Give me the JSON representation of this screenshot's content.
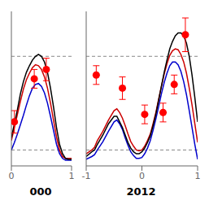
{
  "chart_data": [
    {
      "type": "line",
      "xlabel": "000",
      "xlim": [
        0,
        1
      ],
      "xticks": [
        0,
        1
      ],
      "ylim": [
        -0.35,
        1.3
      ],
      "tick_labels": "x",
      "reference_lines": [
        0.82,
        -0.18
      ],
      "series": [
        {
          "color": "#0000cc",
          "x": [
            0.0,
            0.05,
            0.1,
            0.15,
            0.2,
            0.25,
            0.3,
            0.35,
            0.4,
            0.45,
            0.5,
            0.55,
            0.6,
            0.65,
            0.7,
            0.75,
            0.8,
            0.85,
            0.9,
            0.95,
            1.0
          ],
          "values": [
            -0.18,
            -0.1,
            -0.01,
            0.09,
            0.19,
            0.3,
            0.4,
            0.48,
            0.52,
            0.53,
            0.5,
            0.43,
            0.32,
            0.18,
            0.03,
            -0.12,
            -0.22,
            -0.27,
            -0.29,
            -0.29,
            -0.29
          ]
        },
        {
          "color": "#cc0000",
          "x": [
            0.0,
            0.05,
            0.1,
            0.15,
            0.2,
            0.25,
            0.3,
            0.35,
            0.4,
            0.45,
            0.5,
            0.55,
            0.6,
            0.65,
            0.7,
            0.75,
            0.8,
            0.85,
            0.9,
            0.95,
            1.0
          ],
          "values": [
            -0.08,
            0.06,
            0.2,
            0.34,
            0.47,
            0.57,
            0.64,
            0.7,
            0.73,
            0.72,
            0.68,
            0.6,
            0.48,
            0.32,
            0.14,
            -0.04,
            -0.18,
            -0.25,
            -0.27,
            -0.27,
            -0.27
          ]
        },
        {
          "color": "#000000",
          "x": [
            0.0,
            0.05,
            0.1,
            0.15,
            0.2,
            0.25,
            0.3,
            0.35,
            0.4,
            0.45,
            0.5,
            0.55,
            0.6,
            0.65,
            0.7,
            0.75,
            0.8,
            0.85,
            0.9,
            0.95,
            1.0
          ],
          "values": [
            -0.05,
            0.1,
            0.25,
            0.42,
            0.55,
            0.65,
            0.72,
            0.78,
            0.82,
            0.84,
            0.82,
            0.76,
            0.65,
            0.48,
            0.28,
            0.06,
            -0.12,
            -0.22,
            -0.27,
            -0.28,
            -0.28
          ]
        },
        {
          "type": "scatter",
          "color": "#ff0000",
          "marker": "circle",
          "x": [
            0.05,
            0.38,
            0.58
          ],
          "values": [
            0.12,
            0.58,
            0.68
          ],
          "yerr": [
            0.12,
            0.1,
            0.12
          ]
        }
      ]
    },
    {
      "type": "line",
      "xlabel": "2012",
      "xlim": [
        -1,
        1
      ],
      "xticks": [
        -1,
        0,
        1
      ],
      "ylim": [
        -0.35,
        1.3
      ],
      "tick_labels": "x",
      "reference_lines": [
        0.82,
        -0.18
      ],
      "series": [
        {
          "color": "#0000cc",
          "x": [
            -1.0,
            -0.9,
            -0.85,
            -0.8,
            -0.7,
            -0.6,
            -0.5,
            -0.45,
            -0.4,
            -0.35,
            -0.3,
            -0.25,
            -0.2,
            -0.15,
            -0.1,
            -0.05,
            0.0,
            0.05,
            0.1,
            0.15,
            0.2,
            0.25,
            0.3,
            0.35,
            0.4,
            0.45,
            0.5,
            0.55,
            0.6,
            0.65,
            0.7,
            0.75,
            0.8,
            0.85,
            0.9,
            0.95,
            1.0
          ],
          "values": [
            -0.28,
            -0.25,
            -0.23,
            -0.18,
            -0.09,
            0.02,
            0.12,
            0.14,
            0.1,
            0.04,
            -0.05,
            -0.13,
            -0.2,
            -0.24,
            -0.27,
            -0.27,
            -0.26,
            -0.22,
            -0.16,
            -0.08,
            0.03,
            0.15,
            0.28,
            0.42,
            0.54,
            0.64,
            0.72,
            0.76,
            0.76,
            0.73,
            0.66,
            0.55,
            0.41,
            0.24,
            0.06,
            -0.12,
            -0.28
          ]
        },
        {
          "color": "#cc0000",
          "x": [
            -1.0,
            -0.9,
            -0.85,
            -0.8,
            -0.7,
            -0.6,
            -0.5,
            -0.45,
            -0.4,
            -0.35,
            -0.3,
            -0.25,
            -0.2,
            -0.15,
            -0.1,
            -0.05,
            0.0,
            0.05,
            0.1,
            0.15,
            0.2,
            0.25,
            0.3,
            0.35,
            0.4,
            0.45,
            0.5,
            0.55,
            0.6,
            0.65,
            0.7,
            0.75,
            0.8,
            0.85,
            0.9,
            0.95,
            1.0
          ],
          "values": [
            -0.22,
            -0.18,
            -0.15,
            -0.08,
            0.02,
            0.14,
            0.24,
            0.26,
            0.22,
            0.16,
            0.08,
            -0.01,
            -0.09,
            -0.14,
            -0.18,
            -0.19,
            -0.18,
            -0.14,
            -0.08,
            -0.01,
            0.1,
            0.22,
            0.36,
            0.5,
            0.63,
            0.74,
            0.83,
            0.88,
            0.9,
            0.89,
            0.84,
            0.76,
            0.64,
            0.48,
            0.3,
            0.1,
            -0.1
          ]
        },
        {
          "color": "#000000",
          "x": [
            -1.0,
            -0.9,
            -0.85,
            -0.8,
            -0.7,
            -0.6,
            -0.5,
            -0.45,
            -0.4,
            -0.35,
            -0.3,
            -0.25,
            -0.2,
            -0.15,
            -0.1,
            -0.05,
            0.0,
            0.05,
            0.1,
            0.15,
            0.2,
            0.25,
            0.3,
            0.35,
            0.4,
            0.45,
            0.5,
            0.55,
            0.6,
            0.65,
            0.7,
            0.75,
            0.8,
            0.85,
            0.9,
            0.95,
            1.0
          ],
          "values": [
            -0.25,
            -0.2,
            -0.18,
            -0.12,
            -0.02,
            0.1,
            0.18,
            0.18,
            0.12,
            0.06,
            -0.02,
            -0.1,
            -0.16,
            -0.2,
            -0.22,
            -0.22,
            -0.2,
            -0.16,
            -0.1,
            -0.03,
            0.08,
            0.2,
            0.35,
            0.5,
            0.65,
            0.78,
            0.9,
            0.98,
            1.04,
            1.07,
            1.07,
            1.04,
            0.96,
            0.82,
            0.62,
            0.38,
            0.12
          ]
        },
        {
          "type": "scatter",
          "color": "#ff0000",
          "marker": "circle",
          "x": [
            -0.82,
            -0.35,
            0.05,
            0.38,
            0.58,
            0.78
          ],
          "values": [
            0.62,
            0.48,
            0.2,
            0.22,
            0.52,
            1.05
          ],
          "yerr": [
            0.1,
            0.12,
            0.1,
            0.1,
            0.1,
            0.18
          ]
        }
      ]
    }
  ]
}
